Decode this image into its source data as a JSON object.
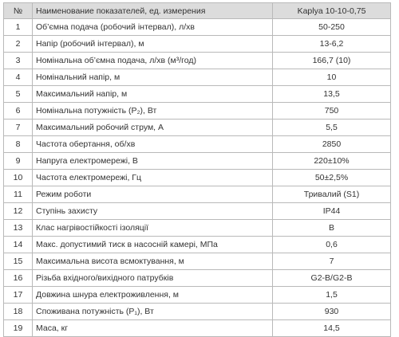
{
  "table": {
    "headers": {
      "num": "№",
      "name": "Наименование показателей, ед. измерения",
      "value": "Kaplya 10-10-0,75"
    },
    "rows": [
      {
        "num": "1",
        "name": "Об’ємна подача (робочий інтервал), л/хв",
        "value": "50-250"
      },
      {
        "num": "2",
        "name": "Напір (робочий інтервал), м",
        "value": "13-6,2"
      },
      {
        "num": "3",
        "name": "Номінальна об’ємна подача, л/хв (м³/год)",
        "value": "166,7 (10)"
      },
      {
        "num": "4",
        "name": "Номінальний напір, м",
        "value": "10"
      },
      {
        "num": "5",
        "name": "Максимальний напір, м",
        "value": "13,5"
      },
      {
        "num": "6",
        "name": "Номінальна потужність (P₂), Вт",
        "value": "750"
      },
      {
        "num": "7",
        "name": "Максимальний робочий струм, А",
        "value": "5,5"
      },
      {
        "num": "8",
        "name": "Частота обертання, об/хв",
        "value": "2850"
      },
      {
        "num": "9",
        "name": "Напруга електромережі, В",
        "value": "220±10%"
      },
      {
        "num": "10",
        "name": "Частота електромережі, Гц",
        "value": "50±2,5%"
      },
      {
        "num": "11",
        "name": "Режим роботи",
        "value": "Тривалий (S1)"
      },
      {
        "num": "12",
        "name": "Ступінь захисту",
        "value": "IP44"
      },
      {
        "num": "13",
        "name": "Клас нагрівостійкості ізоляції",
        "value": "B"
      },
      {
        "num": "14",
        "name": "Макс. допустимий тиск в насосній камері, МПа",
        "value": "0,6"
      },
      {
        "num": "15",
        "name": "Максимальна висота всмоктування, м",
        "value": "7"
      },
      {
        "num": "16",
        "name": "Різьба вхідного/вихідного патрубків",
        "value": "G2-B/G2-B"
      },
      {
        "num": "17",
        "name": "Довжина шнура електроживлення, м",
        "value": "1,5"
      },
      {
        "num": "18",
        "name": "Споживана потужність (P₁), Вт",
        "value": "930"
      },
      {
        "num": "19",
        "name": "Маса, кг",
        "value": "14,5"
      }
    ]
  },
  "colors": {
    "header_bg": "#dcdcdc",
    "border": "#b9b9b9",
    "text": "#333333"
  }
}
